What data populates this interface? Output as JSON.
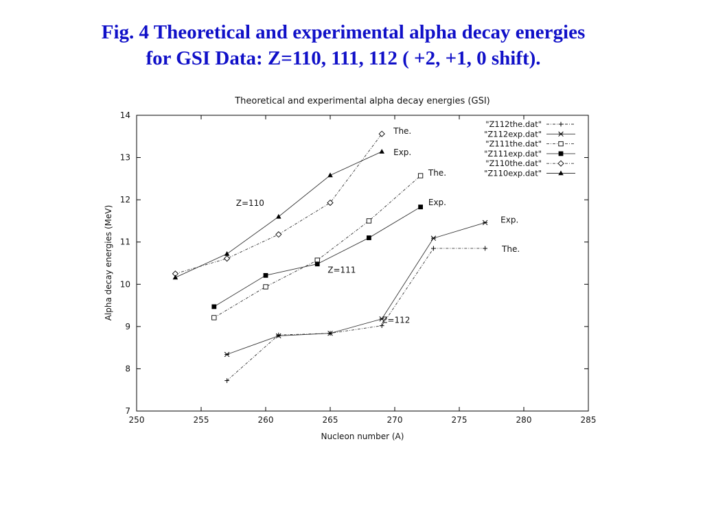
{
  "slide": {
    "title_line1": "Fig. 4 Theoretical and experimental alpha decay energies",
    "title_line2": "for GSI Data: Z=110, 111, 112 ( +2, +1, 0 shift)."
  },
  "chart_data": {
    "type": "line",
    "title": "Theoretical and experimental alpha decay energies (GSI)",
    "xlabel": "Nucleon number (A)",
    "ylabel": "Alpha decay energies (MeV)",
    "xlim": [
      250,
      285
    ],
    "ylim": [
      7,
      14
    ],
    "xticks": [
      250,
      255,
      260,
      265,
      270,
      275,
      280,
      285
    ],
    "yticks": [
      7,
      8,
      9,
      10,
      11,
      12,
      13,
      14
    ],
    "grid": false,
    "legend_position": "top-right",
    "series": [
      {
        "name": "\"Z112the.dat\"",
        "marker": "plus",
        "dash": "dashdot",
        "x": [
          257,
          261,
          265,
          269,
          273,
          277
        ],
        "y": [
          7.72,
          8.8,
          8.84,
          9.02,
          10.85,
          10.85
        ]
      },
      {
        "name": "\"Z112exp.dat\"",
        "marker": "asterisk",
        "dash": "solid",
        "x": [
          257,
          261,
          265,
          269,
          273,
          277
        ],
        "y": [
          8.34,
          8.78,
          8.84,
          9.18,
          11.09,
          11.46
        ]
      },
      {
        "name": "\"Z111the.dat\"",
        "marker": "open-square",
        "dash": "dashdot",
        "x": [
          256,
          260,
          264,
          268,
          272
        ],
        "y": [
          9.21,
          9.94,
          10.57,
          11.5,
          12.57
        ]
      },
      {
        "name": "\"Z111exp.dat\"",
        "marker": "filled-square",
        "dash": "solid",
        "x": [
          256,
          260,
          264,
          268,
          272
        ],
        "y": [
          9.47,
          10.21,
          10.48,
          11.1,
          11.83
        ]
      },
      {
        "name": "\"Z110the.dat\"",
        "marker": "open-diamond",
        "dash": "dashdot",
        "x": [
          253,
          257,
          261,
          265,
          269
        ],
        "y": [
          10.25,
          10.61,
          11.18,
          11.93,
          13.56
        ]
      },
      {
        "name": "\"Z110exp.dat\"",
        "marker": "filled-triangle",
        "dash": "solid",
        "x": [
          253,
          257,
          261,
          265,
          269
        ],
        "y": [
          10.16,
          10.72,
          11.6,
          12.58,
          13.14
        ]
      }
    ],
    "annotations": [
      {
        "text": "The.",
        "x": 269.9,
        "y": 13.56
      },
      {
        "text": "Exp.",
        "x": 269.9,
        "y": 13.06
      },
      {
        "text": "The.",
        "x": 272.6,
        "y": 12.57
      },
      {
        "text": "Exp.",
        "x": 272.6,
        "y": 11.87
      },
      {
        "text": "Exp.",
        "x": 278.2,
        "y": 11.46
      },
      {
        "text": "The.",
        "x": 278.3,
        "y": 10.77
      },
      {
        "text": "Z=110",
        "x": 257.7,
        "y": 11.86
      },
      {
        "text": "Z=111",
        "x": 264.8,
        "y": 10.27
      },
      {
        "text": "Z=112",
        "x": 269.0,
        "y": 9.09
      }
    ]
  }
}
